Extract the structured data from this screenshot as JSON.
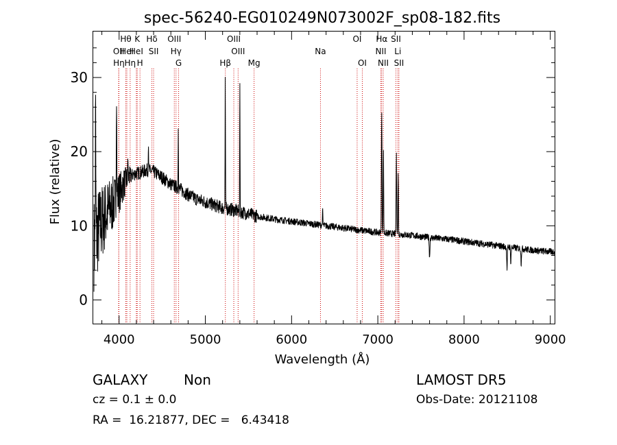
{
  "chart_data": {
    "type": "line",
    "title": "spec-56240-EG010249N073002F_sp08-182.fits",
    "xlabel": "Wavelength (Å)",
    "ylabel": "Flux (relative)",
    "xlim": [
      3700,
      9050
    ],
    "ylim": [
      -3.2,
      36.2
    ],
    "xticks": [
      4000,
      5000,
      6000,
      7000,
      8000,
      9000
    ],
    "yticks": [
      0,
      10,
      20,
      30
    ],
    "grid": false,
    "line_color": "#000000",
    "marker_color": "#cc0000",
    "continuum": [
      [
        3710,
        7.5
      ],
      [
        3760,
        9.5
      ],
      [
        3820,
        11
      ],
      [
        3900,
        12.5
      ],
      [
        3960,
        13.5
      ],
      [
        4000,
        14.5
      ],
      [
        4050,
        15.5
      ],
      [
        4100,
        16.5
      ],
      [
        4180,
        17
      ],
      [
        4250,
        17.2
      ],
      [
        4320,
        17.5
      ],
      [
        4400,
        17.3
      ],
      [
        4500,
        16.5
      ],
      [
        4600,
        15.6
      ],
      [
        4700,
        15
      ],
      [
        4800,
        14.2
      ],
      [
        4900,
        13.6
      ],
      [
        5000,
        13.2
      ],
      [
        5100,
        12.8
      ],
      [
        5200,
        12.4
      ],
      [
        5300,
        12.2
      ],
      [
        5400,
        11.9
      ],
      [
        5500,
        11.6
      ],
      [
        5600,
        11.3
      ],
      [
        5800,
        10.9
      ],
      [
        6000,
        10.6
      ],
      [
        6200,
        10.3
      ],
      [
        6400,
        10.0
      ],
      [
        6600,
        9.7
      ],
      [
        6800,
        9.4
      ],
      [
        7000,
        9.1
      ],
      [
        7200,
        8.9
      ],
      [
        7400,
        8.7
      ],
      [
        7600,
        8.4
      ],
      [
        7800,
        8.2
      ],
      [
        8000,
        7.9
      ],
      [
        8200,
        7.6
      ],
      [
        8400,
        7.3
      ],
      [
        8600,
        7.0
      ],
      [
        8800,
        6.7
      ],
      [
        9000,
        6.5
      ],
      [
        9050,
        6.5
      ]
    ],
    "emission_lines": [
      {
        "x": 3727,
        "peak": 25.5,
        "width": 4
      },
      {
        "x": 3970,
        "peak": 29.5,
        "width": 4
      },
      {
        "x": 4102,
        "peak": 19.5,
        "width": 3
      },
      {
        "x": 4340,
        "peak": 21.5,
        "width": 3
      },
      {
        "x": 4686,
        "peak": 23.8,
        "width": 3
      },
      {
        "x": 5231,
        "peak": 30.3,
        "width": 3
      },
      {
        "x": 5400,
        "peak": 30.0,
        "width": 3
      },
      {
        "x": 6360,
        "peak": 12.0,
        "width": 4
      },
      {
        "x": 7045,
        "peak": 25.0,
        "width": 5
      },
      {
        "x": 7065,
        "peak": 20.0,
        "width": 4
      },
      {
        "x": 7215,
        "peak": 19.5,
        "width": 5
      },
      {
        "x": 7236,
        "peak": 17.0,
        "width": 4
      }
    ],
    "absorption_lines": [
      {
        "x": 7600,
        "depth": 2.8,
        "width": 5
      },
      {
        "x": 8498,
        "depth": 3.0,
        "width": 5
      },
      {
        "x": 8542,
        "depth": 2.0,
        "width": 5
      },
      {
        "x": 8662,
        "depth": 2.0,
        "width": 5
      }
    ],
    "line_markers": [
      {
        "label": "OII",
        "x": 3995,
        "row": 2
      },
      {
        "label": "Hη",
        "x": 3998,
        "row": 3
      },
      {
        "label": "Hθ",
        "x": 4078,
        "row": 1
      },
      {
        "label": "HeI",
        "x": 4090,
        "row": 2
      },
      {
        "label": "Hη",
        "x": 4128,
        "row": 3
      },
      {
        "label": "K",
        "x": 4210,
        "row": 1
      },
      {
        "label": "HeI",
        "x": 4200,
        "row": 2
      },
      {
        "label": "H",
        "x": 4242,
        "row": 3
      },
      {
        "label": "Hδ",
        "x": 4380,
        "row": 1
      },
      {
        "label": "SII",
        "x": 4400,
        "row": 2
      },
      {
        "label": "OIII",
        "x": 4640,
        "row": 1
      },
      {
        "label": "Hγ",
        "x": 4660,
        "row": 2
      },
      {
        "label": "G",
        "x": 4690,
        "row": 3
      },
      {
        "label": "Hβ",
        "x": 5232,
        "row": 3
      },
      {
        "label": "OIII",
        "x": 5330,
        "row": 1
      },
      {
        "label": "OIII",
        "x": 5380,
        "row": 2
      },
      {
        "label": "Mg",
        "x": 5565,
        "row": 3
      },
      {
        "label": "Na",
        "x": 6335,
        "row": 2
      },
      {
        "label": "OI",
        "x": 6760,
        "row": 1
      },
      {
        "label": "OI",
        "x": 6820,
        "row": 3
      },
      {
        "label": "Hα",
        "x": 7045,
        "row": 1
      },
      {
        "label": "NII",
        "x": 7035,
        "row": 2
      },
      {
        "label": "NII",
        "x": 7063,
        "row": 3
      },
      {
        "label": "SII",
        "x": 7210,
        "row": 1
      },
      {
        "label": "Li",
        "x": 7232,
        "row": 2
      },
      {
        "label": "SII",
        "x": 7245,
        "row": 3
      }
    ]
  },
  "info": {
    "object_type": "GALAXY",
    "subclass": "Non",
    "survey": "LAMOST DR5",
    "redshift": "cz = 0.1 ± 0.0",
    "obs_date": "Obs-Date: 20121108",
    "coords": "RA =  16.21877, DEC =   6.43418"
  }
}
